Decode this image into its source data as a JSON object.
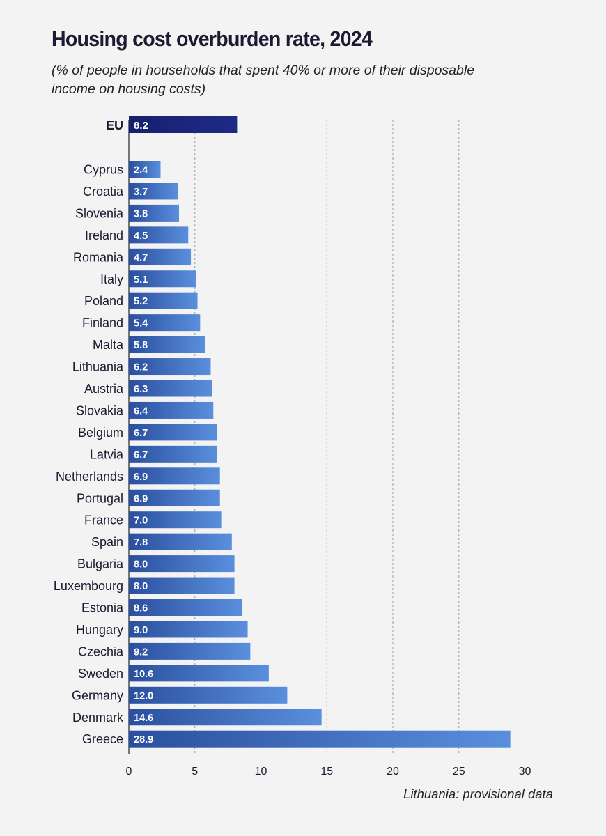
{
  "title": "Housing cost overburden rate, 2024",
  "subtitle": "(% of people in households that spent 40% or more of their disposable income on housing costs)",
  "footnote": "Lithuania: provisional data",
  "chart_data": {
    "type": "bar",
    "orientation": "horizontal",
    "title": "Housing cost overburden rate, 2024",
    "subtitle": "(% of people in households that spent 40% or more of their disposable income on housing costs)",
    "xlim": [
      0,
      30
    ],
    "xticks": [
      "0",
      "5",
      "10",
      "15",
      "20",
      "25",
      "30"
    ],
    "grid": "vertical dashed",
    "highlight": {
      "category": "EU",
      "value": 8.2,
      "label": "8.2"
    },
    "categories": [
      "Cyprus",
      "Croatia",
      "Slovenia",
      "Ireland",
      "Romania",
      "Italy",
      "Poland",
      "Finland",
      "Malta",
      "Lithuania",
      "Austria",
      "Slovakia",
      "Belgium",
      "Latvia",
      "Netherlands",
      "Portugal",
      "France",
      "Spain",
      "Bulgaria",
      "Luxembourg",
      "Estonia",
      "Hungary",
      "Czechia",
      "Sweden",
      "Germany",
      "Denmark",
      "Greece"
    ],
    "values": [
      2.4,
      3.7,
      3.8,
      4.5,
      4.7,
      5.1,
      5.2,
      5.4,
      5.8,
      6.2,
      6.3,
      6.4,
      6.7,
      6.7,
      6.9,
      6.9,
      7.0,
      7.8,
      8.0,
      8.0,
      8.6,
      9.0,
      9.2,
      10.6,
      12.0,
      14.6,
      28.9
    ],
    "value_labels": [
      "2.4",
      "3.7",
      "3.8",
      "4.5",
      "4.7",
      "5.1",
      "5.2",
      "5.4",
      "5.8",
      "6.2",
      "6.3",
      "6.4",
      "6.7",
      "6.7",
      "6.9",
      "6.9",
      "7.0",
      "7.8",
      "8.0",
      "8.0",
      "8.6",
      "9.0",
      "9.2",
      "10.6",
      "12.0",
      "14.6",
      "28.9"
    ],
    "colors": {
      "eu_bar": "#1e2a86",
      "bar_dark": "#2a4f9e",
      "bar_light": "#5a8fdd",
      "grid": "#9a9a9a"
    }
  }
}
